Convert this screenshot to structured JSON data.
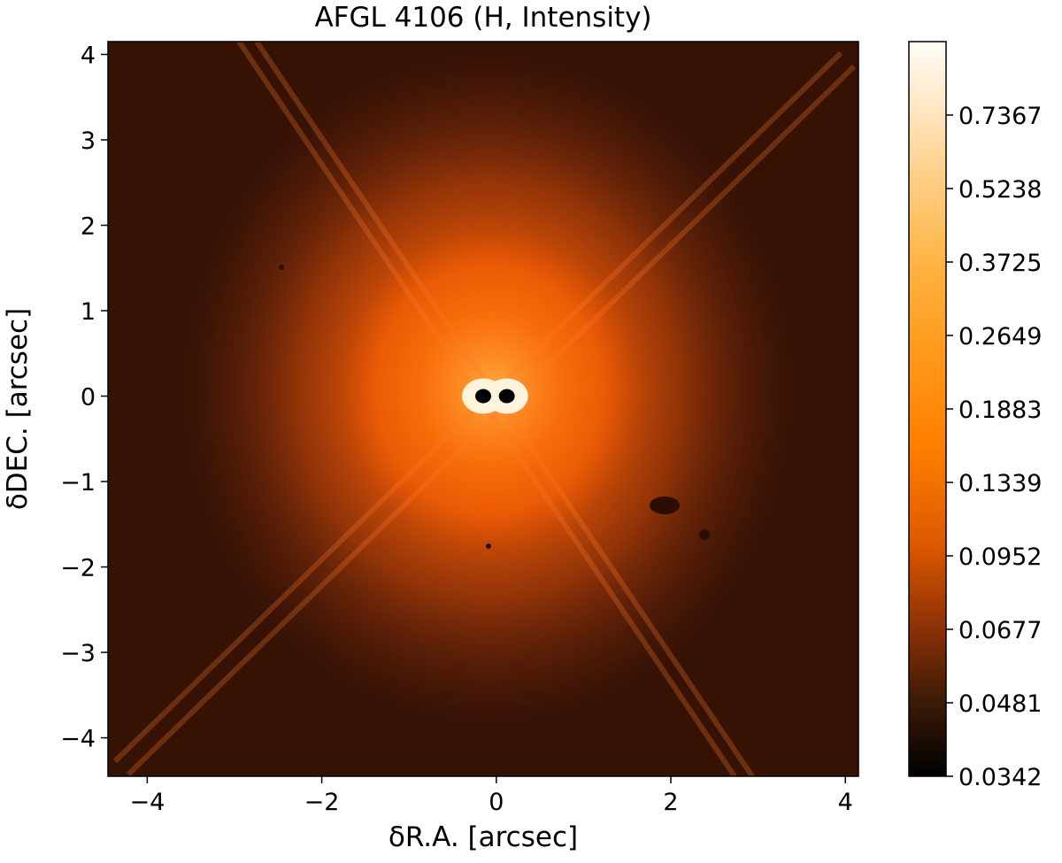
{
  "chart_data": {
    "type": "heatmap",
    "title": "AFGL 4106 (H, Intensity)",
    "xlabel": "δR.A. [arcsec]",
    "ylabel": "δDEC. [arcsec]",
    "xlim": [
      -4.45,
      4.15
    ],
    "ylim": [
      -4.45,
      4.15
    ],
    "xticks": [
      -4,
      -2,
      0,
      2,
      4
    ],
    "xtick_labels": [
      "−4",
      "−2",
      "0",
      "2",
      "4"
    ],
    "yticks": [
      -4,
      -3,
      -2,
      -1,
      0,
      1,
      2,
      3,
      4
    ],
    "ytick_labels": [
      "−4",
      "−3",
      "−2",
      "−1",
      "0",
      "1",
      "2",
      "3",
      "4"
    ],
    "colorbar": {
      "colormap": "afmhot",
      "min": 0.0342,
      "max": 1.0,
      "tick_values": [
        0.0342,
        0.0481,
        0.0677,
        0.0952,
        0.1339,
        0.1883,
        0.2649,
        0.3725,
        0.5238,
        0.7367
      ],
      "tick_labels": [
        "0.0342",
        "0.0481",
        "0.0677",
        "0.0952",
        "0.1339",
        "0.1883",
        "0.2649",
        "0.3725",
        "0.5238",
        "0.7367"
      ]
    },
    "sources": [
      {
        "ra": -0.15,
        "dec": 0.0
      },
      {
        "ra": 0.12,
        "dec": 0.0
      }
    ],
    "grid": false
  }
}
